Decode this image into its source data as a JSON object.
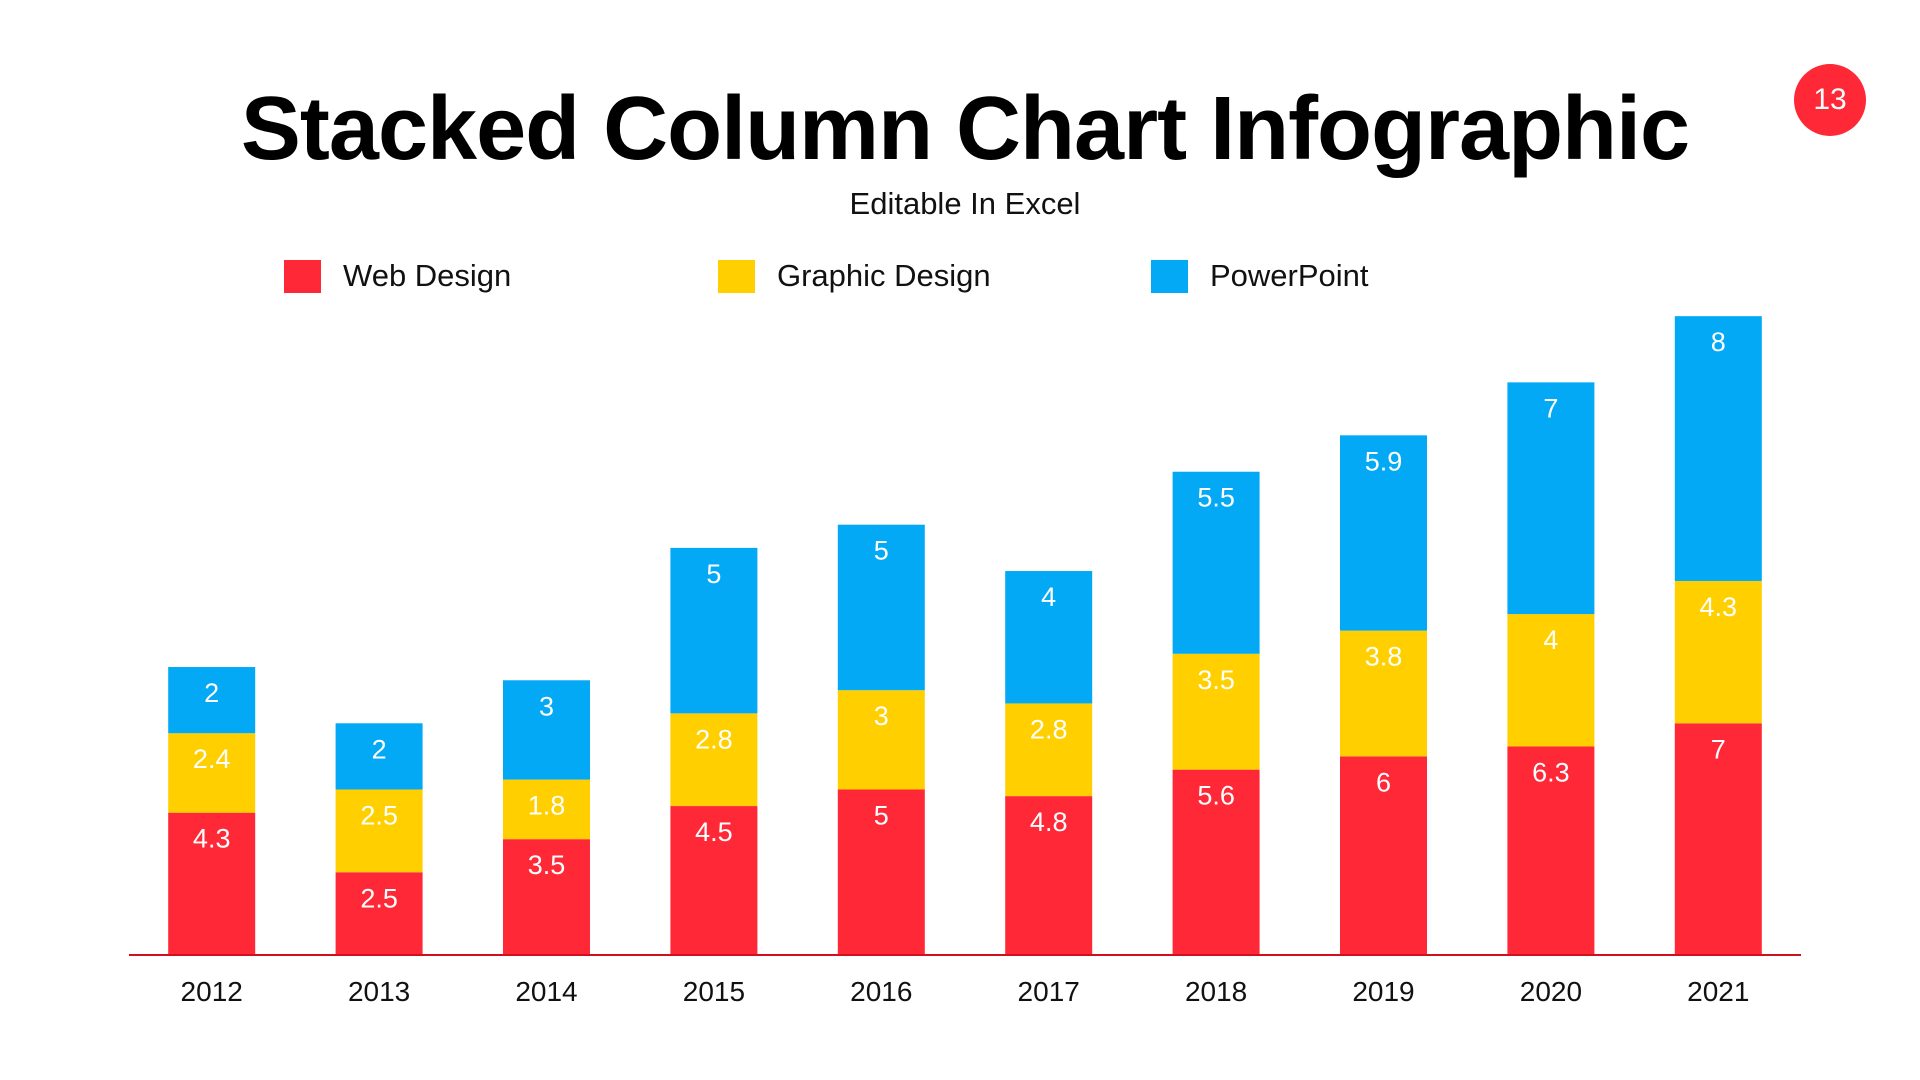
{
  "page_number": "13",
  "colors": {
    "web": "#FF2837",
    "graphic": "#FFCF00",
    "powerpoint": "#03A9F4",
    "axis": "#D0101E"
  },
  "chart_data": {
    "type": "bar",
    "stacked": true,
    "title": "Stacked Column Chart Infographic",
    "subtitle": "Editable In Excel",
    "xlabel": "",
    "ylabel": "",
    "legend_position": "top",
    "grid": false,
    "categories": [
      "2012",
      "2013",
      "2014",
      "2015",
      "2016",
      "2017",
      "2018",
      "2019",
      "2020",
      "2021"
    ],
    "series": [
      {
        "name": "Web Design",
        "color": "#FF2837",
        "values": [
          4.3,
          2.5,
          3.5,
          4.5,
          5,
          4.8,
          5.6,
          6,
          6.3,
          7
        ]
      },
      {
        "name": "Graphic Design",
        "color": "#FFCF00",
        "values": [
          2.4,
          2.5,
          1.8,
          2.8,
          3,
          2.8,
          3.5,
          3.8,
          4,
          4.3
        ]
      },
      {
        "name": "PowerPoint",
        "color": "#03A9F4",
        "values": [
          2,
          2,
          3,
          5,
          5,
          4,
          5.5,
          5.9,
          7,
          8
        ]
      }
    ],
    "ylim": [
      0,
      19.3
    ]
  }
}
